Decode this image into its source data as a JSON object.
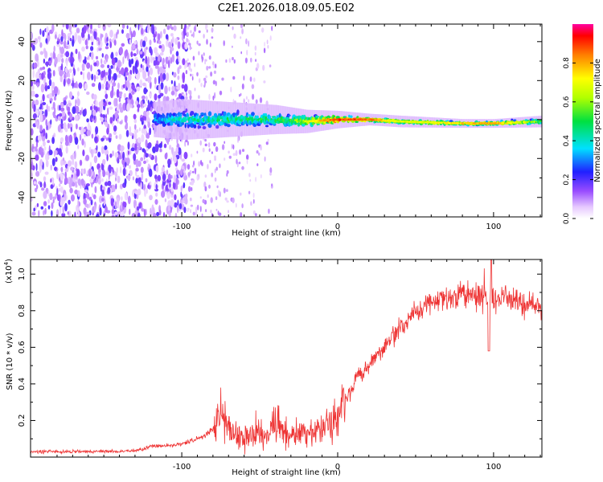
{
  "title": "C2E1.2026.018.09.05.E02",
  "chart_data": [
    {
      "type": "heatmap",
      "title": "C2E1.2026.018.09.05.E02",
      "xlabel": "Height of straight line (km)",
      "ylabel": "Frequency (Hz)",
      "xlim": [
        -197,
        131
      ],
      "ylim": [
        -50,
        49
      ],
      "xticks": [
        -100,
        0,
        100
      ],
      "yticks": [
        -40,
        -20,
        0,
        20,
        40
      ],
      "colorbar": {
        "label": "Normalized spectral amplitude",
        "range": [
          0,
          1
        ],
        "ticks": [
          "0.0",
          "0.2",
          "0.4",
          "0.6",
          "0.8"
        ]
      },
      "description_points": {
        "x": [
          -197,
          -120,
          -118,
          -100,
          -70,
          -40,
          -20,
          0,
          20,
          40,
          80,
          100,
          131
        ],
        "center_frequency": [
          0,
          0,
          0,
          0,
          0,
          0,
          -1,
          0,
          0,
          -1,
          -2,
          -2,
          -1
        ],
        "band_halfwidth": [
          50,
          50,
          6,
          7,
          6,
          5,
          4,
          3,
          2,
          2,
          1.5,
          1.5,
          2
        ],
        "peak_amplitude": [
          0.2,
          0.2,
          0.35,
          0.45,
          0.5,
          0.55,
          0.7,
          0.95,
          0.9,
          0.7,
          0.8,
          0.85,
          0.6
        ]
      }
    },
    {
      "type": "line",
      "xlabel": "Height of straight line (km)",
      "ylabel": "SNR (10 * v/v)",
      "y_multiplier": "(x10",
      "y_multiplier_exp": "4",
      "y_multiplier_close": ")",
      "xlim": [
        -197,
        131
      ],
      "ylim": [
        0,
        1.08
      ],
      "xticks": [
        -100,
        0,
        100
      ],
      "yticks": [
        0.2,
        0.4,
        0.6,
        0.8,
        1.0
      ],
      "ytick_labels": [
        "0.2",
        "0.4",
        "0.6",
        "0.8",
        "1.0"
      ],
      "color": "#ee3333",
      "series": [
        {
          "name": "SNR",
          "x": [
            -197,
            -180,
            -160,
            -140,
            -125,
            -120,
            -110,
            -100,
            -90,
            -85,
            -80,
            -75,
            -72,
            -68,
            -65,
            -60,
            -55,
            -50,
            -45,
            -40,
            -35,
            -30,
            -25,
            -20,
            -15,
            -10,
            -5,
            0,
            2,
            5,
            8,
            10,
            12,
            15,
            20,
            25,
            30,
            35,
            40,
            45,
            50,
            55,
            60,
            65,
            70,
            75,
            80,
            85,
            90,
            95,
            97,
            100,
            105,
            110,
            115,
            120,
            125,
            131
          ],
          "y": [
            0.03,
            0.03,
            0.03,
            0.03,
            0.04,
            0.06,
            0.06,
            0.07,
            0.1,
            0.12,
            0.16,
            0.22,
            0.19,
            0.14,
            0.12,
            0.1,
            0.12,
            0.13,
            0.12,
            0.18,
            0.14,
            0.12,
            0.13,
            0.14,
            0.15,
            0.16,
            0.17,
            0.2,
            0.25,
            0.32,
            0.35,
            0.4,
            0.44,
            0.45,
            0.5,
            0.56,
            0.6,
            0.66,
            0.71,
            0.75,
            0.79,
            0.83,
            0.85,
            0.86,
            0.87,
            0.88,
            0.89,
            0.88,
            0.88,
            0.87,
            0.84,
            0.87,
            0.86,
            0.85,
            0.85,
            0.84,
            0.84,
            0.83
          ]
        }
      ]
    }
  ]
}
